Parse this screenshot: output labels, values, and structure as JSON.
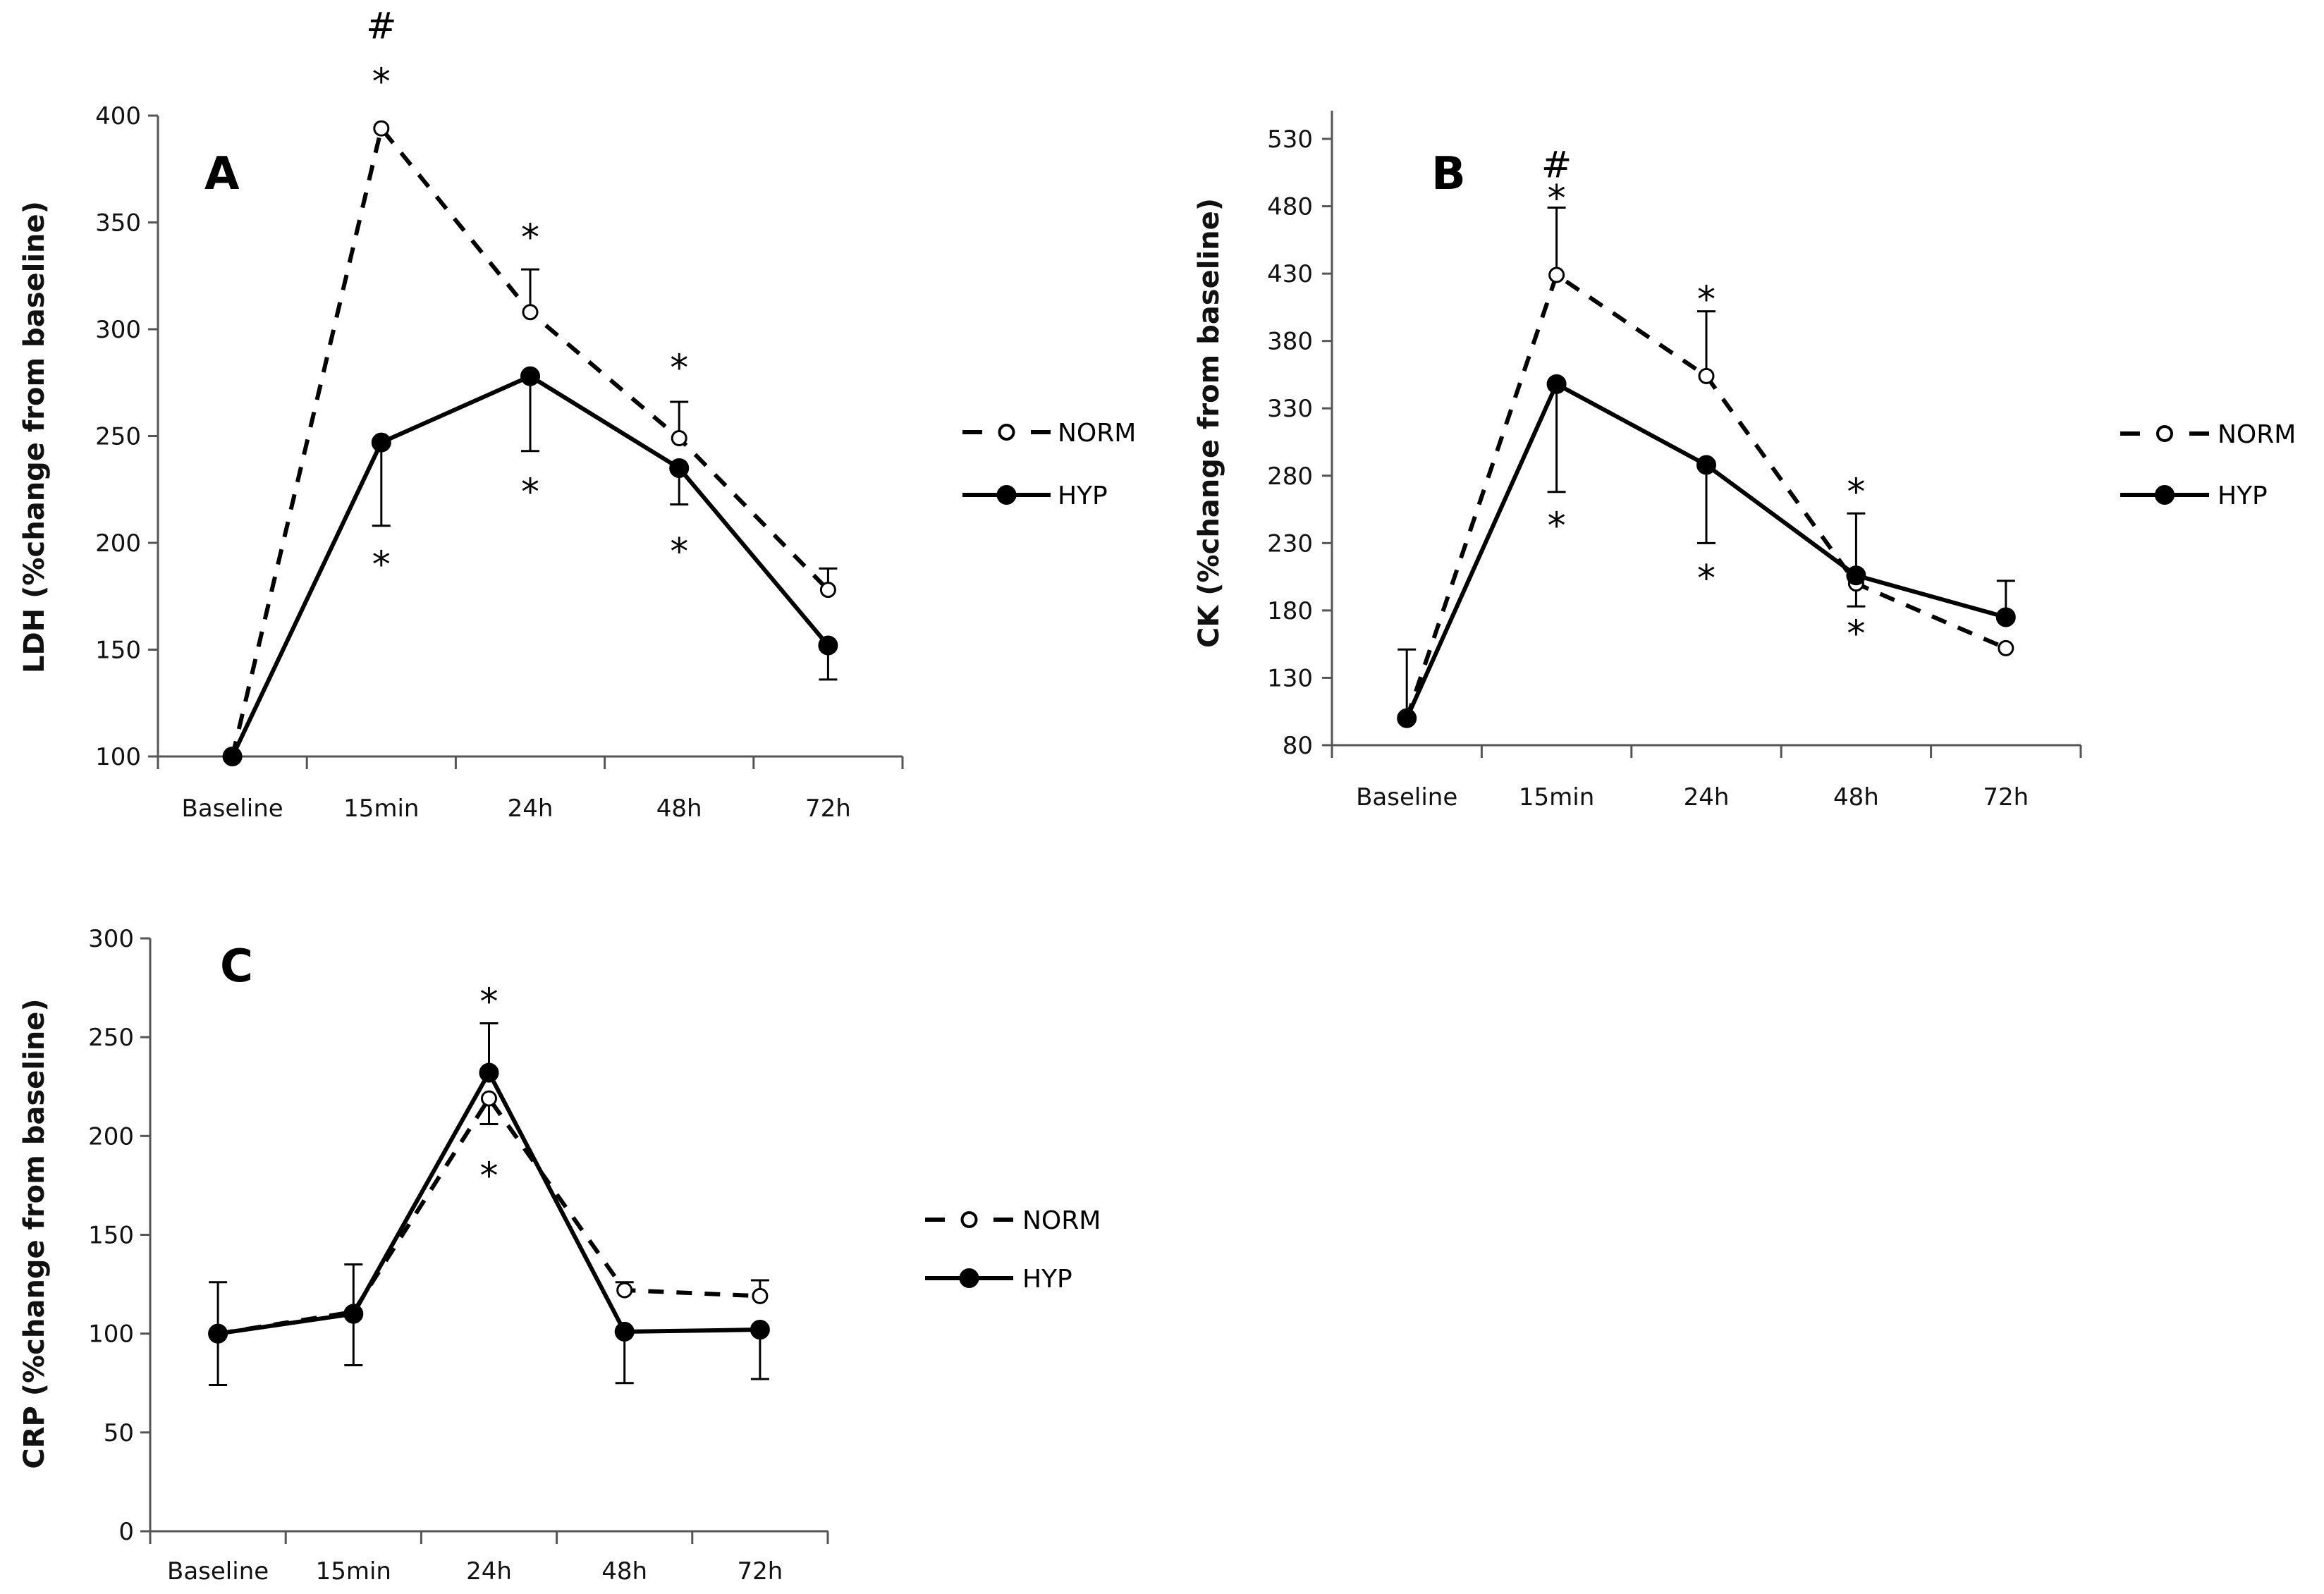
{
  "chart_data": [
    {
      "type": "line",
      "panel": "A",
      "title": "",
      "xlabel": "",
      "ylabel": "LDH (%change from baseline)",
      "ylim": [
        100,
        400
      ],
      "yticks": [
        100,
        150,
        200,
        250,
        300,
        350,
        400
      ],
      "categories": [
        "Baseline",
        "15min",
        "24h",
        "48h",
        "72h"
      ],
      "grid": false,
      "legend_position": "right",
      "series": [
        {
          "name": "NORM",
          "style": "dashed",
          "marker": "open-circle",
          "values": [
            100,
            394,
            308,
            249,
            178
          ],
          "error_up": [
            null,
            null,
            328,
            266,
            188
          ],
          "error_down": [
            null,
            null,
            null,
            null,
            null
          ]
        },
        {
          "name": "HYP",
          "style": "solid",
          "marker": "filled-circle",
          "values": [
            100,
            247,
            278,
            235,
            152
          ],
          "error_up": [
            null,
            null,
            null,
            null,
            null
          ],
          "error_down": [
            null,
            208,
            243,
            218,
            136
          ]
        }
      ],
      "annotations": [
        {
          "text": "#",
          "category": "15min",
          "value": 442
        },
        {
          "text": "*",
          "category": "15min",
          "value": 416
        },
        {
          "text": "*",
          "category": "15min",
          "value": 190
        },
        {
          "text": "*",
          "category": "24h",
          "value": 343
        },
        {
          "text": "*",
          "category": "24h",
          "value": 224
        },
        {
          "text": "*",
          "category": "48h",
          "value": 282
        },
        {
          "text": "*",
          "category": "48h",
          "value": 196
        }
      ]
    },
    {
      "type": "line",
      "panel": "B",
      "title": "",
      "xlabel": "",
      "ylabel": "CK (%change from baseline)",
      "ylim": [
        80,
        545
      ],
      "yticks": [
        80,
        130,
        180,
        230,
        280,
        330,
        380,
        430,
        480,
        530
      ],
      "categories": [
        "Baseline",
        "15min",
        "24h",
        "48h",
        "72h"
      ],
      "grid": false,
      "legend_position": "right",
      "series": [
        {
          "name": "NORM",
          "style": "dashed",
          "marker": "open-circle",
          "values": [
            100,
            429,
            354,
            200,
            152
          ],
          "error_up": [
            151,
            479,
            402,
            null,
            null
          ],
          "error_down": [
            null,
            null,
            null,
            183,
            null
          ]
        },
        {
          "name": "HYP",
          "style": "solid",
          "marker": "filled-circle",
          "values": [
            100,
            348,
            288,
            206,
            175
          ],
          "error_up": [
            null,
            null,
            null,
            252,
            202
          ],
          "error_down": [
            null,
            268,
            230,
            null,
            null
          ]
        }
      ],
      "annotations": [
        {
          "text": "#",
          "category": "15min",
          "value": 511
        },
        {
          "text": "*",
          "category": "15min",
          "value": 486
        },
        {
          "text": "*",
          "category": "15min",
          "value": 243
        },
        {
          "text": "*",
          "category": "24h",
          "value": 411
        },
        {
          "text": "*",
          "category": "24h",
          "value": 204
        },
        {
          "text": "*",
          "category": "48h",
          "value": 268
        },
        {
          "text": "*",
          "category": "48h",
          "value": 163
        }
      ]
    },
    {
      "type": "line",
      "panel": "C",
      "title": "",
      "xlabel": "",
      "ylabel": "CRP (%change from baseline)",
      "ylim": [
        0,
        300
      ],
      "yticks": [
        0,
        50,
        100,
        150,
        200,
        250,
        300
      ],
      "categories": [
        "Baseline",
        "15min",
        "24h",
        "48h",
        "72h"
      ],
      "grid": false,
      "legend_position": "right",
      "series": [
        {
          "name": "NORM",
          "style": "dashed",
          "marker": "open-circle",
          "values": [
            100,
            111,
            219,
            122,
            119
          ],
          "error_up": [
            null,
            null,
            null,
            126,
            127
          ],
          "error_down": [
            null,
            null,
            206,
            null,
            null
          ]
        },
        {
          "name": "HYP",
          "style": "solid",
          "marker": "filled-circle",
          "values": [
            100,
            110,
            232,
            101,
            102
          ],
          "error_up": [
            126,
            135,
            257,
            null,
            null
          ],
          "error_down": [
            74,
            84,
            null,
            75,
            77
          ]
        }
      ],
      "annotations": [
        {
          "text": "*",
          "category": "24h",
          "value": 268
        },
        {
          "text": "*",
          "category": "24h",
          "value": 180
        }
      ]
    }
  ]
}
